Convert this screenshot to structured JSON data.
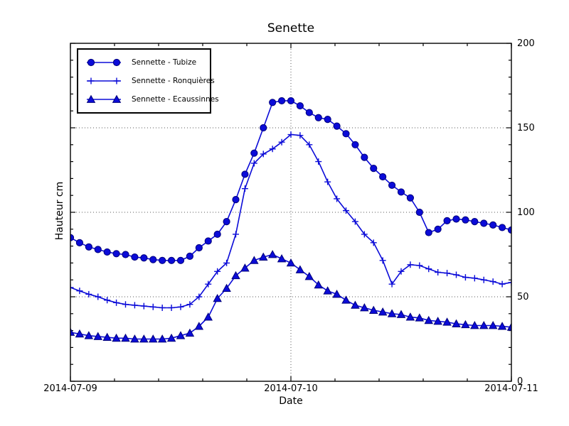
{
  "figure": {
    "background": "#ffffff"
  },
  "chart_data": {
    "type": "line",
    "title": "Senette",
    "xlabel": "Date",
    "ylabel": "Hauteur cm",
    "x_tick_labels": [
      "2014-07-09",
      "2014-07-10",
      "2014-07-11"
    ],
    "y_tick_labels": [
      "0",
      "50",
      "100",
      "150",
      "200"
    ],
    "ylim": [
      0,
      200
    ],
    "xlim_hours": [
      0,
      48
    ],
    "x_interval_hours": 1,
    "y_major_step": 50,
    "y_minor_step": 10,
    "x_major_step_hours": 24,
    "x_minor_step_hours": 4.8,
    "grid": {
      "y_values": [
        50,
        100,
        150
      ],
      "x_hours": [
        24
      ],
      "style": "dotted",
      "color": "#595959"
    },
    "legend_position": "upper-left",
    "line_color": "#0b0bd8",
    "marker_edge_color": "#00007a",
    "series": [
      {
        "name": "Sennette - Tubize",
        "marker": "circle",
        "color": "#0b0bd8",
        "edge": "#00007a",
        "values": [
          85,
          82,
          79.5,
          78,
          76.5,
          75.5,
          75,
          73.5,
          73,
          72,
          71.5,
          71.5,
          71.5,
          74,
          79,
          83,
          87,
          94.5,
          107.5,
          122.5,
          135,
          150,
          165,
          166,
          166,
          163,
          159,
          156,
          155,
          151,
          146.5,
          140,
          132.5,
          126,
          121,
          116,
          112,
          108.5,
          100,
          88,
          90,
          95,
          96,
          95.5,
          94.5,
          93.5,
          92.5,
          91,
          89.5
        ]
      },
      {
        "name": "Sennette - Ronquières",
        "marker": "plus",
        "color": "#0b0bd8",
        "edge": "#0b0bd8",
        "values": [
          55.5,
          53.5,
          51.5,
          50,
          48,
          46.5,
          45.5,
          45,
          44.5,
          44,
          43.5,
          43.5,
          44,
          45.5,
          50,
          57.5,
          65,
          70,
          87,
          114,
          129,
          134.5,
          137.5,
          141.5,
          146,
          145.5,
          140,
          130,
          118,
          108,
          101,
          94.5,
          87,
          82,
          71.5,
          57.5,
          65,
          69,
          68.5,
          66.5,
          64.5,
          64,
          63,
          61.5,
          61,
          60,
          59,
          57.5,
          58.5
        ]
      },
      {
        "name": "Sennette - Ecaussinnes",
        "marker": "triangle-up",
        "color": "#0b0bd8",
        "edge": "#00007a",
        "values": [
          29,
          28,
          27,
          26.5,
          26,
          25.5,
          25.5,
          25,
          25,
          25,
          25,
          25.5,
          27,
          28.5,
          32.5,
          38,
          49,
          55,
          62.5,
          67,
          71.5,
          73.5,
          75,
          72.5,
          70,
          66,
          62,
          57,
          53.5,
          51.5,
          48,
          45,
          43.5,
          42,
          41,
          40,
          39.5,
          38,
          37.5,
          36,
          35.5,
          35,
          34,
          33.5,
          33,
          33,
          33,
          32.5,
          32
        ]
      }
    ]
  }
}
